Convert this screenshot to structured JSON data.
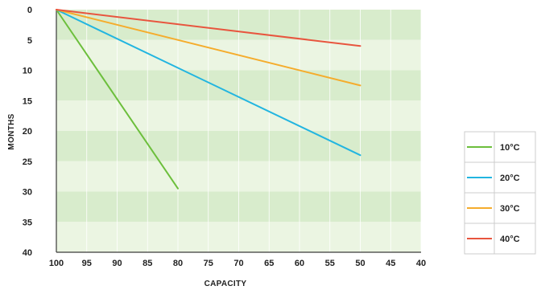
{
  "chart_data": {
    "type": "line",
    "xlabel": "CAPACITY",
    "ylabel": "MONTHS",
    "xlim": [
      100,
      40
    ],
    "ylim": [
      0,
      40
    ],
    "y_inverted": true,
    "x_ticks": [
      100,
      95,
      90,
      85,
      80,
      75,
      70,
      65,
      60,
      55,
      50,
      45,
      40
    ],
    "y_ticks": [
      0,
      5,
      10,
      15,
      20,
      25,
      30,
      35,
      40
    ],
    "grid": "alternating horizontal bands",
    "legend_position": "right",
    "series": [
      {
        "name": "10°C",
        "color": "#6cbf3c",
        "points": [
          [
            100,
            0
          ],
          [
            80,
            29.5
          ]
        ]
      },
      {
        "name": "20°C",
        "color": "#22b5e0",
        "points": [
          [
            100,
            0
          ],
          [
            50,
            24
          ]
        ]
      },
      {
        "name": "30°C",
        "color": "#f5ac2c",
        "points": [
          [
            100,
            0
          ],
          [
            50,
            12.5
          ]
        ]
      },
      {
        "name": "40°C",
        "color": "#e8553e",
        "points": [
          [
            100,
            0
          ],
          [
            50,
            6
          ]
        ]
      }
    ],
    "band_colors": [
      "#d8eccc",
      "#ebf5e2"
    ]
  }
}
